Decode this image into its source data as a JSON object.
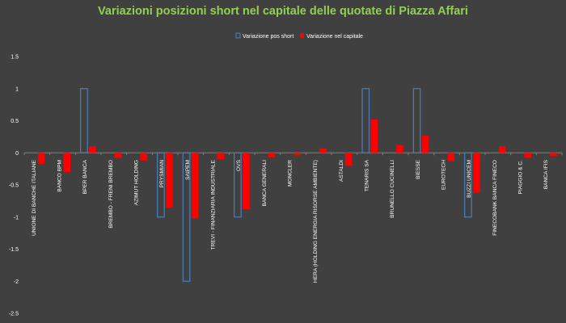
{
  "chart_data": {
    "type": "bar",
    "title": "Variazioni posizioni short nel capitale delle quotate di Piazza Affari",
    "xlabel": "",
    "ylabel": "",
    "ylim": [
      -2.5,
      1.5
    ],
    "yticks": [
      1.5,
      1,
      0.5,
      0,
      -0.5,
      -1,
      -1.5,
      -2,
      -2.5
    ],
    "grid": false,
    "legend_position": "top",
    "categories": [
      "UNIONE DI BANCHE ITALIANE",
      "BANCO BPM",
      "BPER BANCA",
      "BREMBO - FRENI BREMBO",
      "AZIMUT HOLDING",
      "PRYSMIAN",
      "SAIPEM",
      "TREVI - FINANZIARIA INDUSTRIALE",
      "OVS",
      "BANCA GENERALI",
      "MONCLER",
      "HERA (HOLDING ENERGIA RISORSE AMBIENTE)",
      "ASTALDI",
      "TENARIS SA",
      "BRUNELLO CUCINELLI",
      "BIESSE",
      "EUROTECH",
      "BUZZI UNICEM",
      "FINECOBANK BANCA FINECO",
      "PIAGGIO & C.",
      "BANCA IFIS"
    ],
    "series": [
      {
        "name": "Variazione pos short",
        "style": "outline",
        "color": "#4A7EBB",
        "values": [
          0,
          0,
          1,
          0,
          0,
          -1,
          -2,
          0,
          -1,
          0,
          0,
          0,
          0,
          1,
          0,
          1,
          0,
          -1,
          0,
          0,
          0
        ]
      },
      {
        "name": "Variazione nel capitale",
        "style": "filled",
        "color": "#FF0000",
        "values": [
          -0.17,
          -0.3,
          0.1,
          -0.08,
          -0.12,
          -0.85,
          -1.02,
          -0.1,
          -0.88,
          -0.07,
          -0.04,
          0.07,
          -0.2,
          0.52,
          0.12,
          0.27,
          -0.13,
          -0.62,
          0.1,
          -0.08,
          -0.05
        ]
      }
    ]
  },
  "colors": {
    "background": "#404040",
    "title": "#92D050",
    "text": "#FFFFFF",
    "axis": "#7F7F7F"
  }
}
